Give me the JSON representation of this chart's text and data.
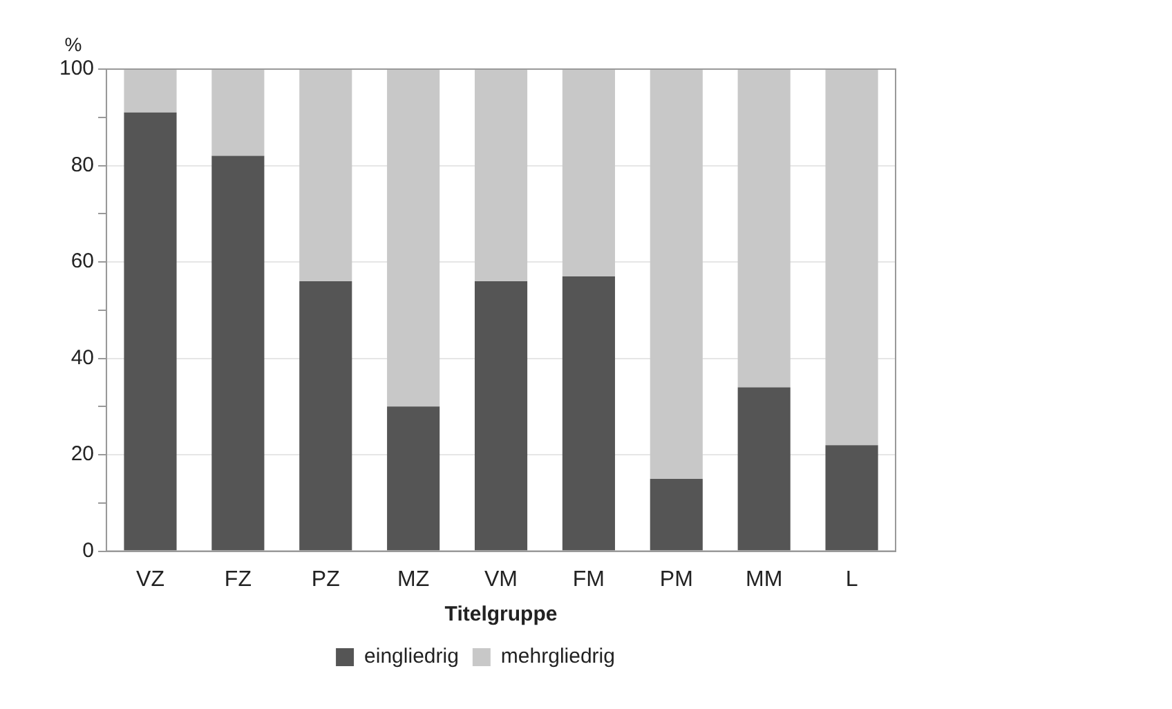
{
  "chart_data": {
    "type": "bar",
    "stacked": true,
    "xlabel": "Titelgruppe",
    "ylabel": "%",
    "categories": [
      "VZ",
      "FZ",
      "PZ",
      "MZ",
      "VM",
      "FM",
      "PM",
      "MM",
      "L"
    ],
    "series": [
      {
        "name": "eingliedrig",
        "color": "#555555",
        "values": [
          91,
          82,
          56,
          30,
          56,
          57,
          15,
          34,
          22
        ]
      },
      {
        "name": "mehrgliedrig",
        "color": "#c8c8c8",
        "values": [
          9,
          18,
          44,
          70,
          44,
          43,
          85,
          66,
          78
        ]
      }
    ],
    "ylim": [
      0,
      100
    ],
    "yticks": [
      0,
      {
        "value": 10,
        "label": null
      },
      20,
      {
        "value": 30,
        "label": null
      },
      40,
      {
        "value": 50,
        "label": null
      },
      60,
      {
        "value": 70,
        "label": null
      },
      80,
      {
        "value": 90,
        "label": null
      },
      100
    ],
    "grid": "y",
    "legend": "bottom"
  }
}
